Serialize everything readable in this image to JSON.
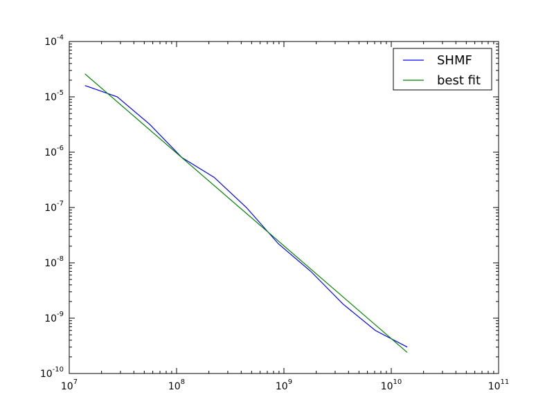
{
  "chart_data": {
    "type": "line",
    "xscale": "log",
    "yscale": "log",
    "xlim": [
      10000000.0,
      100000000000.0
    ],
    "ylim": [
      1e-10,
      0.0001
    ],
    "x_ticks": [
      {
        "base": "10",
        "exp": "7"
      },
      {
        "base": "10",
        "exp": "8"
      },
      {
        "base": "10",
        "exp": "9"
      },
      {
        "base": "10",
        "exp": "10"
      },
      {
        "base": "10",
        "exp": "11"
      }
    ],
    "y_ticks": [
      {
        "base": "10",
        "exp": "-10"
      },
      {
        "base": "10",
        "exp": "-9"
      },
      {
        "base": "10",
        "exp": "-8"
      },
      {
        "base": "10",
        "exp": "-7"
      },
      {
        "base": "10",
        "exp": "-6"
      },
      {
        "base": "10",
        "exp": "-5"
      },
      {
        "base": "10",
        "exp": "-4"
      }
    ],
    "grid": false,
    "legend_position": "top-right",
    "series": [
      {
        "name": "SHMF",
        "color": "#0000ff",
        "x": [
          14000000.0,
          28000000.0,
          56000000.0,
          112000000.0,
          224000000.0,
          447000000.0,
          890000000.0,
          1780000000.0,
          3550000000.0,
          7100000000.0,
          14100000000.0
        ],
        "y": [
          1.6e-05,
          1e-05,
          3.2e-06,
          8e-07,
          3.5e-07,
          1e-07,
          2.2e-08,
          7e-09,
          1.8e-09,
          6e-10,
          3e-10
        ]
      },
      {
        "name": "best fit",
        "color": "#008000",
        "x": [
          14000000.0,
          14100000000.0
        ],
        "y": [
          2.6e-05,
          2.4e-10
        ]
      }
    ]
  }
}
